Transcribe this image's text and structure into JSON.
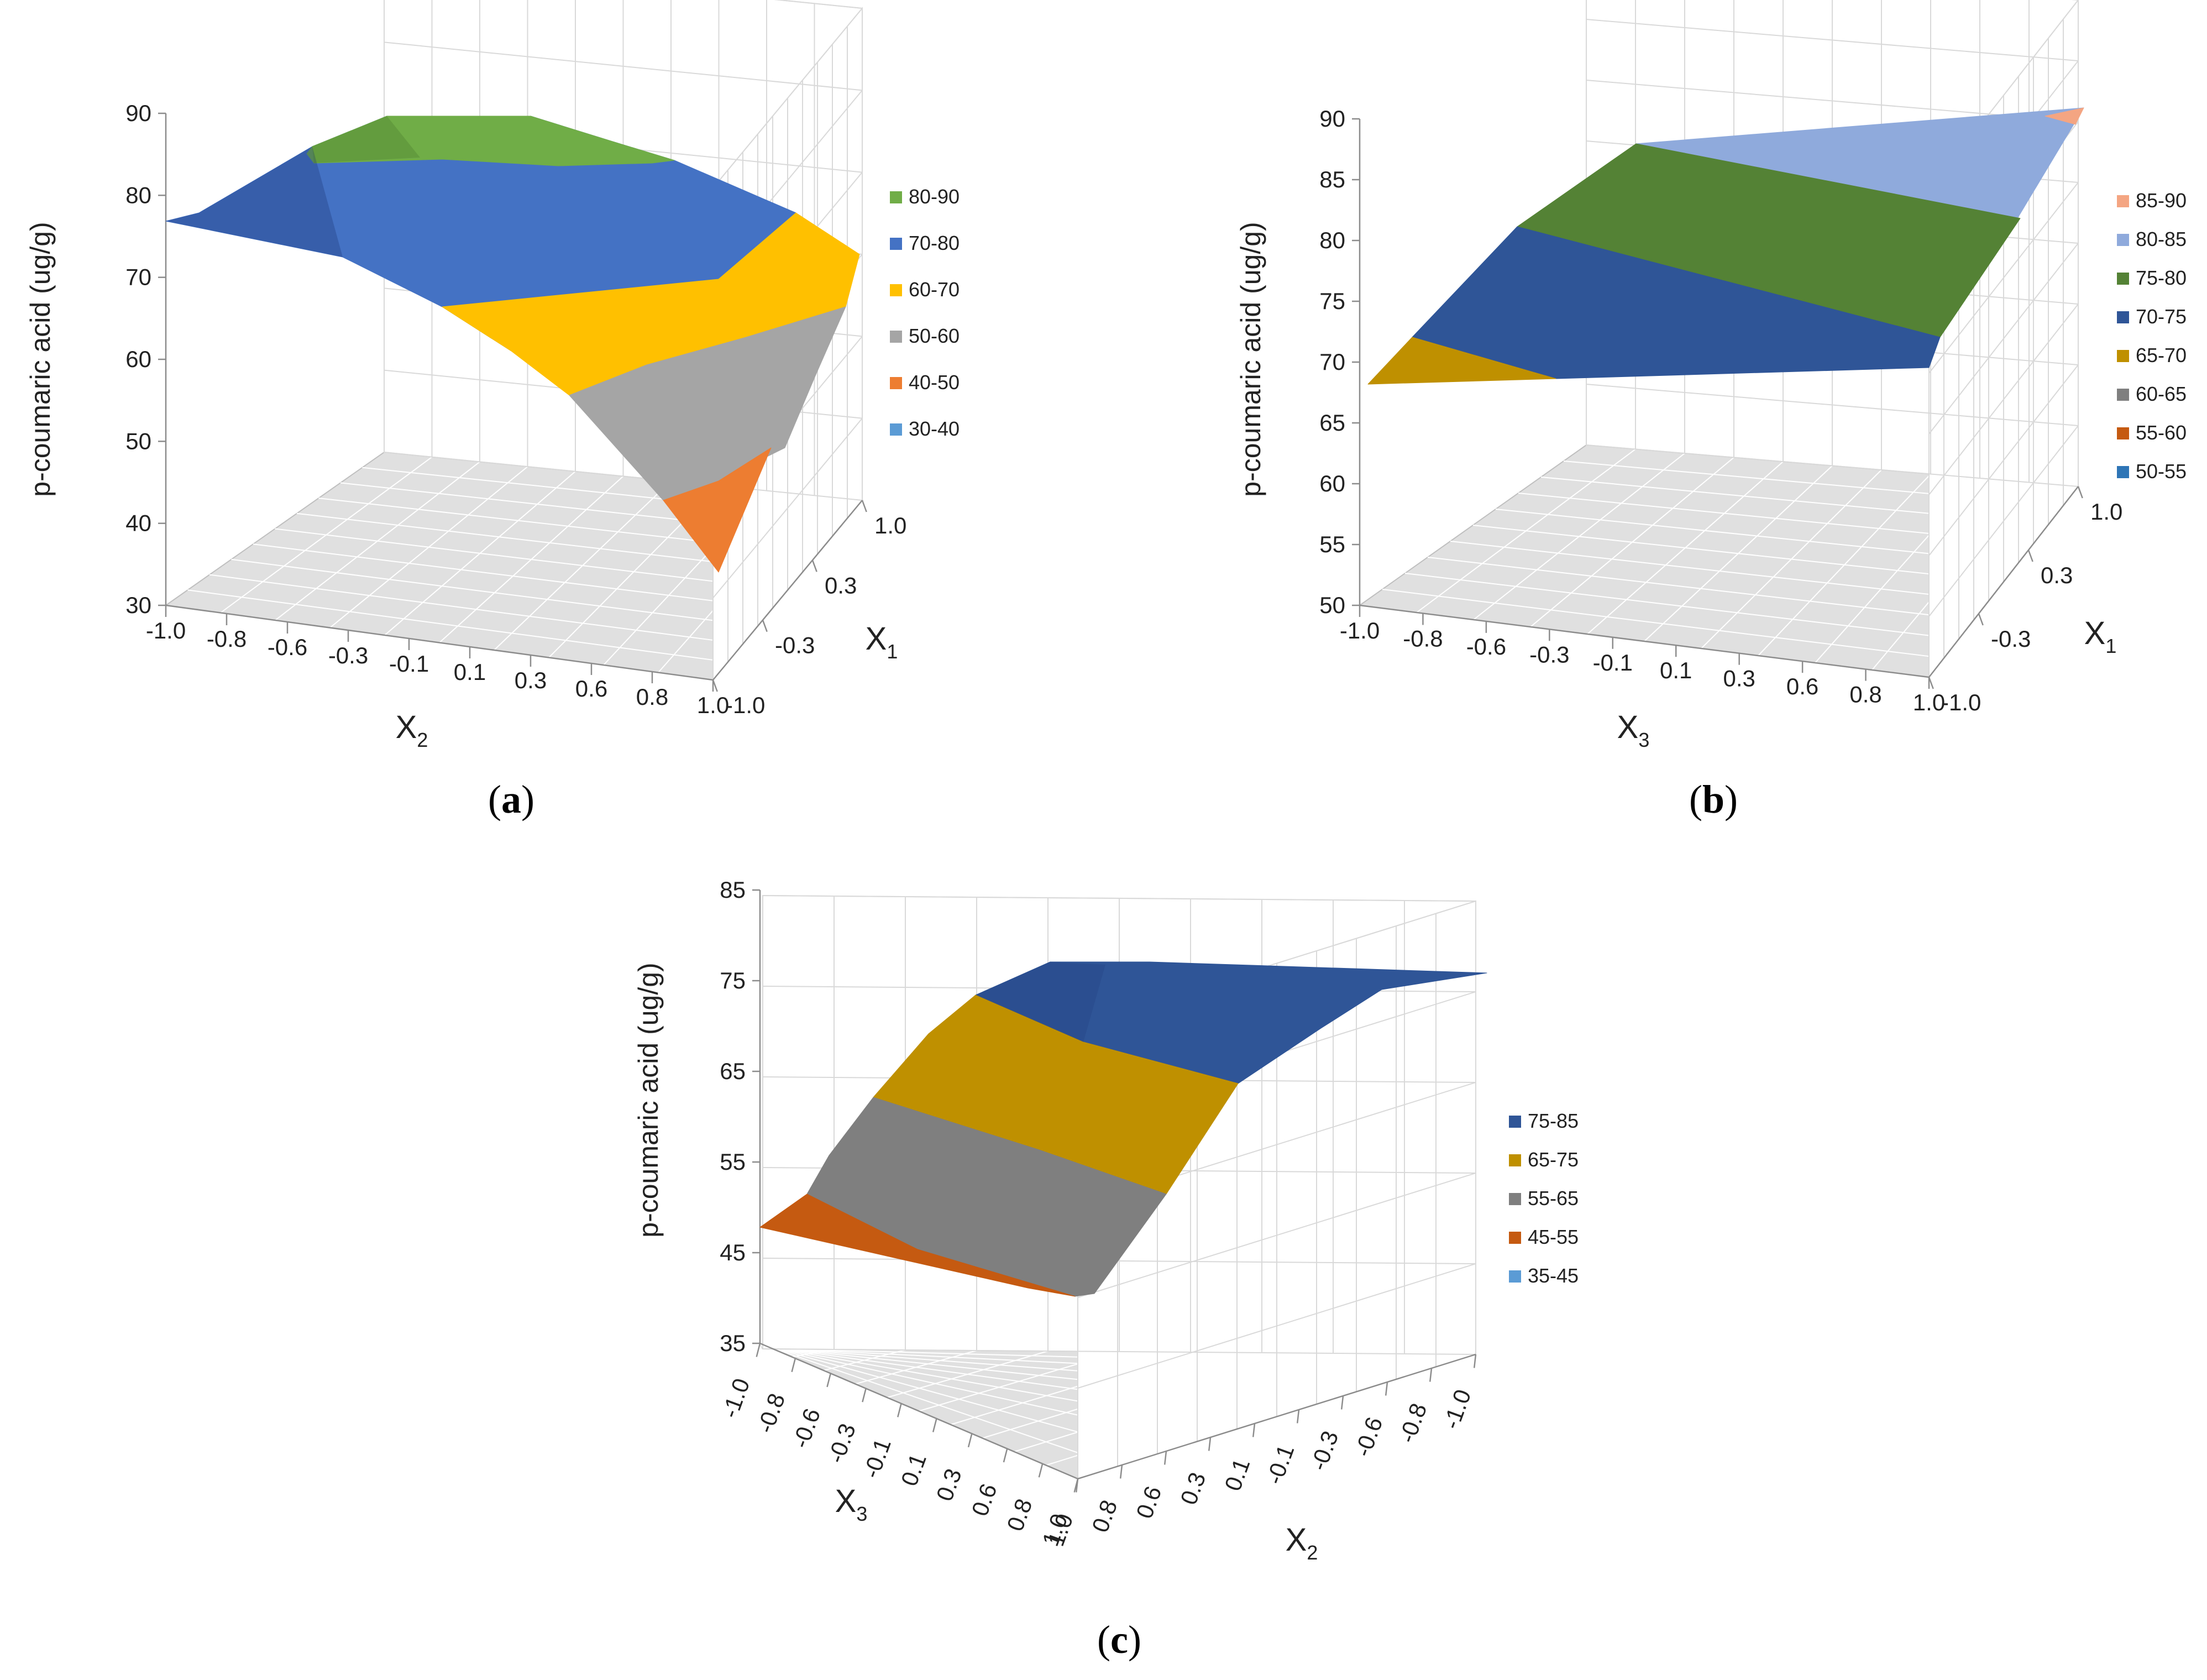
{
  "chart_data": [
    {
      "type": "surface3d",
      "caption": "a",
      "zlabel": "p-coumaric acid (ug/g)",
      "xlabel": {
        "base": "X",
        "sub": "2"
      },
      "ylabel": {
        "base": "X",
        "sub": "1"
      },
      "zticks": [
        "30",
        "40",
        "50",
        "60",
        "70",
        "80",
        "90"
      ],
      "xticks": [
        "-1.0",
        "-0.8",
        "-0.6",
        "-0.3",
        "-0.1",
        "0.1",
        "0.3",
        "0.6",
        "0.8",
        "1.0"
      ],
      "yticks": [
        "-1.0",
        "-0.3",
        "0.3",
        "1.0"
      ],
      "zlim": [
        30,
        90
      ],
      "legend": [
        {
          "label": "80-90",
          "color": "#70ad47"
        },
        {
          "label": "70-80",
          "color": "#4472c4"
        },
        {
          "label": "60-70",
          "color": "#ffc000"
        },
        {
          "label": "50-60",
          "color": "#a5a5a5"
        },
        {
          "label": "40-50",
          "color": "#ed7d31"
        },
        {
          "label": "30-40",
          "color": "#5b9bd5"
        }
      ],
      "surface_bands": [
        {
          "range": "80-90",
          "color": "#70ad47"
        },
        {
          "range": "70-80",
          "color": "#4472c4"
        },
        {
          "range": "60-70",
          "color": "#ffc000"
        },
        {
          "range": "50-60",
          "color": "#a5a5a5"
        },
        {
          "range": "40-50",
          "color": "#ed7d31"
        }
      ]
    },
    {
      "type": "surface3d",
      "caption": "b",
      "zlabel": "p-coumaric acid (ug/g)",
      "xlabel": {
        "base": "X",
        "sub": "3"
      },
      "ylabel": {
        "base": "X",
        "sub": "1"
      },
      "zticks": [
        "50",
        "55",
        "60",
        "65",
        "70",
        "75",
        "80",
        "85",
        "90"
      ],
      "xticks": [
        "-1.0",
        "-0.8",
        "-0.6",
        "-0.3",
        "-0.1",
        "0.1",
        "0.3",
        "0.6",
        "0.8",
        "1.0"
      ],
      "yticks": [
        "-1.0",
        "-0.3",
        "0.3",
        "1.0"
      ],
      "zlim": [
        50,
        90
      ],
      "legend": [
        {
          "label": "85-90",
          "color": "#f4a582"
        },
        {
          "label": "80-85",
          "color": "#8faadc"
        },
        {
          "label": "75-80",
          "color": "#548235"
        },
        {
          "label": "70-75",
          "color": "#2f5597"
        },
        {
          "label": "65-70",
          "color": "#bf9000"
        },
        {
          "label": "60-65",
          "color": "#7f7f7f"
        },
        {
          "label": "55-60",
          "color": "#c55a11"
        },
        {
          "label": "50-55",
          "color": "#2e75b6"
        }
      ],
      "surface_bands": [
        {
          "range": "85-90",
          "color": "#f4a582"
        },
        {
          "range": "80-85",
          "color": "#8faadc"
        },
        {
          "range": "75-80",
          "color": "#548235"
        },
        {
          "range": "70-75",
          "color": "#2f5597"
        },
        {
          "range": "65-70",
          "color": "#bf9000"
        }
      ]
    },
    {
      "type": "surface3d",
      "caption": "c",
      "zlabel": "p-coumaric acid (ug/g)",
      "xlabel": {
        "base": "X",
        "sub": "3"
      },
      "ylabel": {
        "base": "X",
        "sub": "2"
      },
      "zticks": [
        "35",
        "45",
        "55",
        "65",
        "75",
        "85"
      ],
      "xticks": [
        "-1.0",
        "-0.8",
        "-0.6",
        "-0.3",
        "-0.1",
        "0.1",
        "0.3",
        "0.6",
        "0.8",
        "1.0"
      ],
      "yticks": [
        "1.0",
        "0.8",
        "0.6",
        "0.3",
        "0.1",
        "-0.1",
        "-0.3",
        "-0.6",
        "-0.8",
        "-1.0"
      ],
      "zlim": [
        35,
        85
      ],
      "legend": [
        {
          "label": "75-85",
          "color": "#2f5597"
        },
        {
          "label": "65-75",
          "color": "#bf9000"
        },
        {
          "label": "55-65",
          "color": "#7f7f7f"
        },
        {
          "label": "45-55",
          "color": "#c55a11"
        },
        {
          "label": "35-45",
          "color": "#5b9bd5"
        }
      ],
      "surface_bands": [
        {
          "range": "75-85",
          "color": "#2f5597"
        },
        {
          "range": "65-75",
          "color": "#bf9000"
        },
        {
          "range": "55-65",
          "color": "#7f7f7f"
        },
        {
          "range": "45-55",
          "color": "#c55a11"
        }
      ]
    }
  ]
}
